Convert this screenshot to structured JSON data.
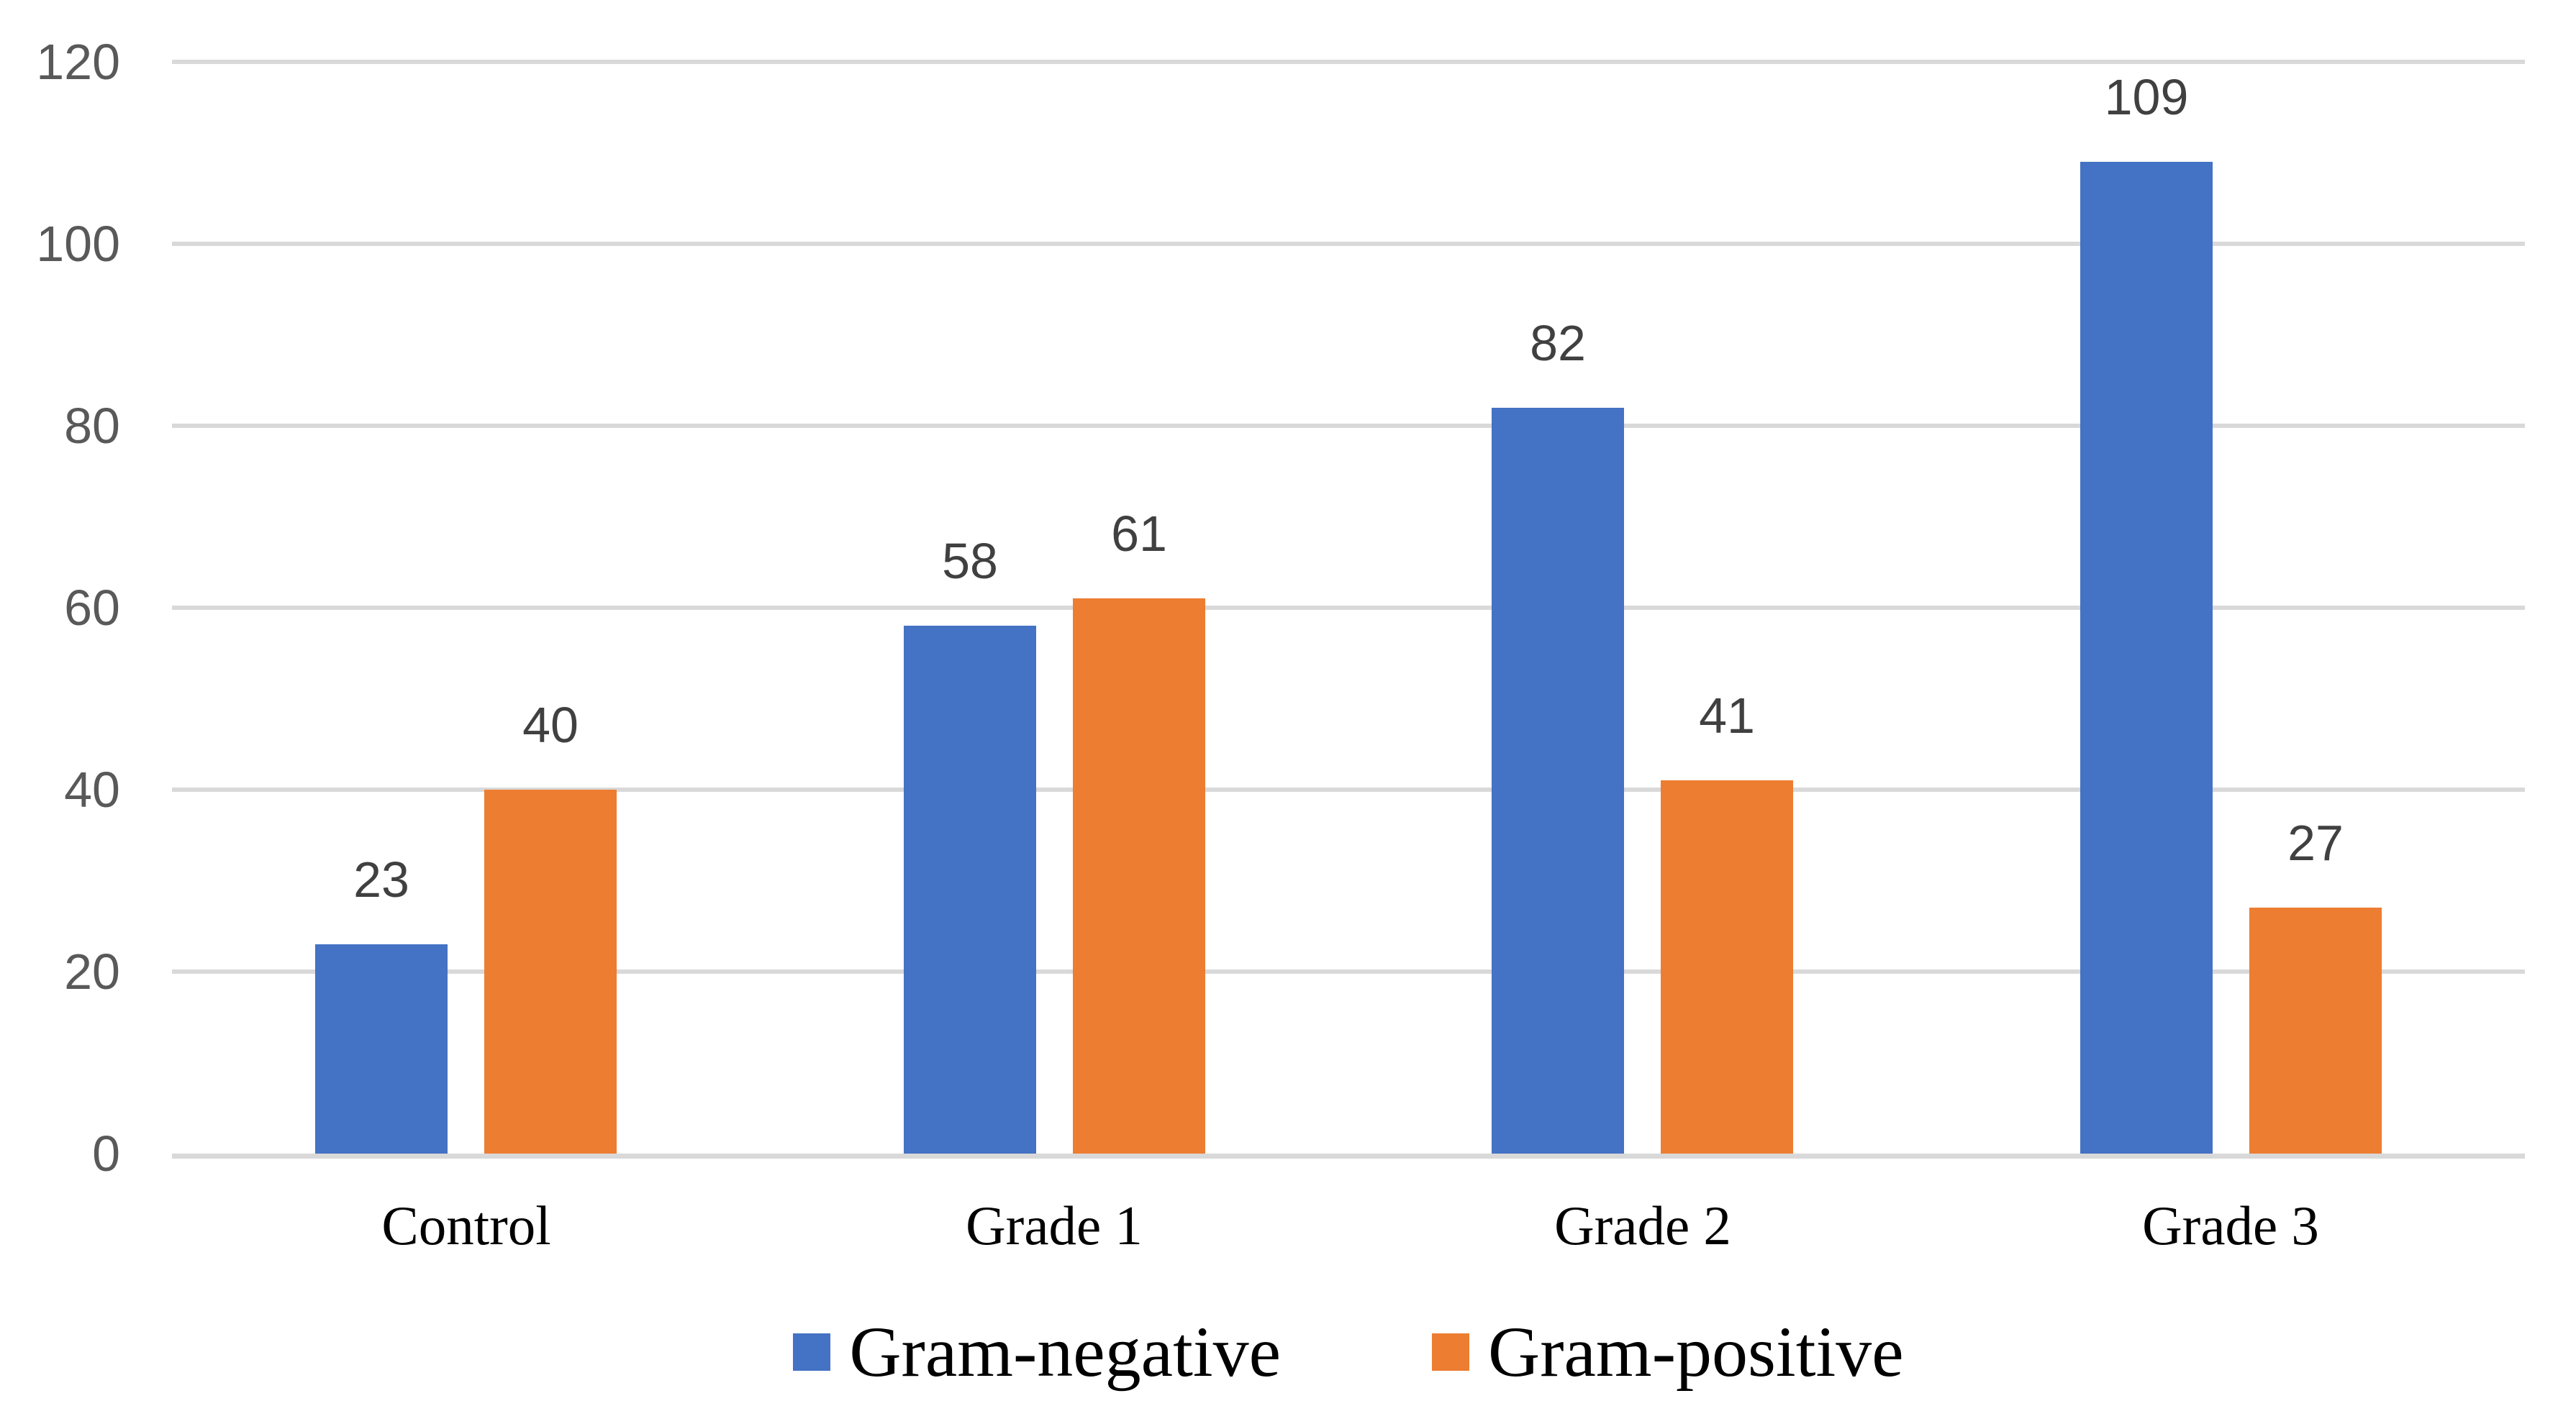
{
  "chart_data": {
    "type": "bar",
    "title": "",
    "xlabel": "",
    "ylabel": "",
    "categories": [
      "Control",
      "Grade 1",
      "Grade 2",
      "Grade 3"
    ],
    "series": [
      {
        "name": "Gram-negative",
        "color": "#4472C4",
        "values": [
          23,
          58,
          82,
          109
        ]
      },
      {
        "name": "Gram-positive",
        "color": "#ED7D31",
        "values": [
          40,
          61,
          41,
          27
        ]
      }
    ],
    "y_ticks": [
      0,
      20,
      40,
      60,
      80,
      100,
      120
    ],
    "ylim": [
      0,
      120
    ],
    "grid": true,
    "data_labels": true,
    "legend_position": "bottom"
  },
  "colors": {
    "background": "#FFFFFF",
    "gridline": "#D9D9D9",
    "axis_line": "#D9D9D9",
    "axis_tick_label": "#595959",
    "data_label": "#404040",
    "category_label": "#000000",
    "legend_label": "#000000"
  }
}
